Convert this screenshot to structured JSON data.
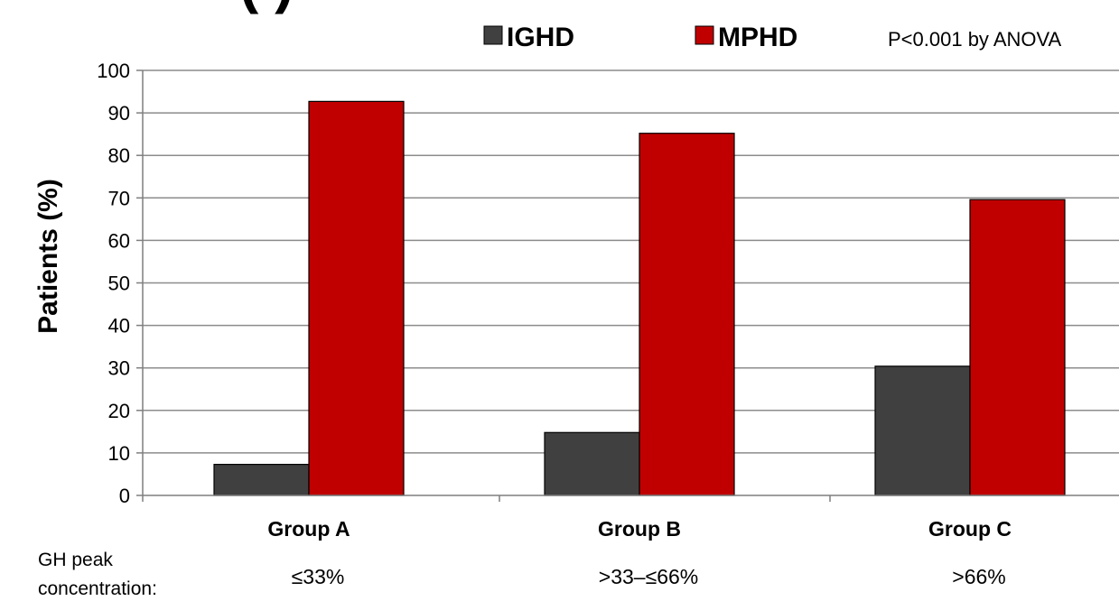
{
  "header": {
    "partial_title": "(         )"
  },
  "annotation": "P<0.001 by ANOVA",
  "row_label": [
    "GH peak",
    "concentration:"
  ],
  "chart_data": {
    "type": "bar",
    "title": "",
    "xlabel": "",
    "ylabel": "Patients (%)",
    "ylim": [
      0,
      100
    ],
    "yticks": [
      0,
      10,
      20,
      30,
      40,
      50,
      60,
      70,
      80,
      90,
      100
    ],
    "categories": [
      "Group A",
      "Group B",
      "Group C"
    ],
    "subcategories": [
      "≤33%",
      ">33–≤66%",
      ">66%"
    ],
    "series": [
      {
        "name": "IGHD",
        "color": "#404040",
        "values": [
          7.3,
          14.8,
          30.4
        ]
      },
      {
        "name": "MPHD",
        "color": "#c00000",
        "values": [
          92.7,
          85.2,
          69.6
        ]
      }
    ],
    "legend_position": "top",
    "grid": true
  }
}
